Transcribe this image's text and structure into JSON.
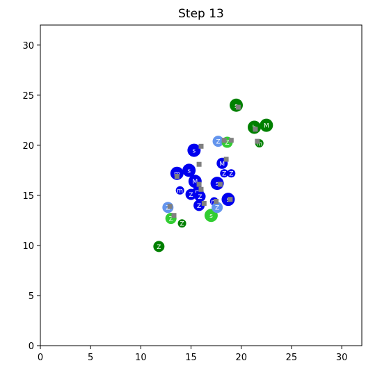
{
  "chart_data": {
    "type": "scatter",
    "title": "Step 13",
    "xlabel": "",
    "ylabel": "",
    "xlim": [
      0,
      32
    ],
    "ylim": [
      0,
      32
    ],
    "xticks": [
      0,
      5,
      10,
      15,
      20,
      25,
      30
    ],
    "yticks": [
      0,
      5,
      10,
      15,
      20,
      25,
      30
    ],
    "grid": false,
    "colors": {
      "blue": "#0000ee",
      "light_blue": "#6495ed",
      "green": "#008000",
      "light_green": "#32cd32",
      "marker_square": "#808080"
    },
    "points": [
      {
        "x": 11.8,
        "y": 9.9,
        "color": "green",
        "size": "small",
        "label": "Z"
      },
      {
        "x": 12.7,
        "y": 13.8,
        "color": "light_blue",
        "size": "small",
        "label": "Z"
      },
      {
        "x": 13.0,
        "y": 12.7,
        "color": "light_green",
        "size": "small",
        "label": "Z"
      },
      {
        "x": 14.1,
        "y": 12.2,
        "color": "green",
        "size": "tiny",
        "label": "Z"
      },
      {
        "x": 13.9,
        "y": 15.5,
        "color": "blue",
        "size": "tiny",
        "label": "m"
      },
      {
        "x": 13.6,
        "y": 17.2,
        "color": "blue",
        "size": "medium",
        "label": "m"
      },
      {
        "x": 14.8,
        "y": 17.5,
        "color": "blue",
        "size": "medium",
        "label": "s"
      },
      {
        "x": 15.3,
        "y": 19.5,
        "color": "blue",
        "size": "medium",
        "label": "s"
      },
      {
        "x": 15.4,
        "y": 16.4,
        "color": "blue",
        "size": "medium",
        "label": "M"
      },
      {
        "x": 15.0,
        "y": 15.1,
        "color": "blue",
        "size": "small",
        "label": "Z"
      },
      {
        "x": 15.8,
        "y": 14.0,
        "color": "blue",
        "size": "small",
        "label": "Z"
      },
      {
        "x": 15.7,
        "y": 15.4,
        "color": "blue",
        "size": "small",
        "label": "m"
      },
      {
        "x": 15.9,
        "y": 14.9,
        "color": "blue",
        "size": "small",
        "label": "Z"
      },
      {
        "x": 17.0,
        "y": 13.0,
        "color": "light_green",
        "size": "medium",
        "label": "s"
      },
      {
        "x": 17.3,
        "y": 14.4,
        "color": "blue",
        "size": "tiny",
        "label": "m"
      },
      {
        "x": 17.6,
        "y": 13.8,
        "color": "light_blue",
        "size": "small",
        "label": "Z"
      },
      {
        "x": 17.6,
        "y": 16.2,
        "color": "blue",
        "size": "medium",
        "label": "s"
      },
      {
        "x": 18.7,
        "y": 14.6,
        "color": "blue",
        "size": "medium",
        "label": "s"
      },
      {
        "x": 18.1,
        "y": 18.2,
        "color": "blue",
        "size": "small",
        "label": "M"
      },
      {
        "x": 18.3,
        "y": 17.2,
        "color": "blue",
        "size": "tiny",
        "label": "Z"
      },
      {
        "x": 19.0,
        "y": 17.2,
        "color": "blue",
        "size": "tiny",
        "label": "Z"
      },
      {
        "x": 17.7,
        "y": 20.4,
        "color": "light_blue",
        "size": "small",
        "label": "Z"
      },
      {
        "x": 18.6,
        "y": 20.3,
        "color": "light_green",
        "size": "small",
        "label": "Z"
      },
      {
        "x": 19.5,
        "y": 24.0,
        "color": "green",
        "size": "medium",
        "label": "s"
      },
      {
        "x": 21.3,
        "y": 21.8,
        "color": "green",
        "size": "medium",
        "label": "h"
      },
      {
        "x": 22.5,
        "y": 22.0,
        "color": "green",
        "size": "medium",
        "label": "M"
      },
      {
        "x": 21.8,
        "y": 20.2,
        "color": "green",
        "size": "tiny",
        "label": "m"
      }
    ],
    "square_markers": [
      [
        12.9,
        13.9
      ],
      [
        13.3,
        13.0
      ],
      [
        13.6,
        16.9
      ],
      [
        15.8,
        18.1
      ],
      [
        16.0,
        19.9
      ],
      [
        15.8,
        16.1
      ],
      [
        16.0,
        15.6
      ],
      [
        16.3,
        14.2
      ],
      [
        17.5,
        14.4
      ],
      [
        17.9,
        16.1
      ],
      [
        18.9,
        14.6
      ],
      [
        18.5,
        18.6
      ],
      [
        18.3,
        20.5
      ],
      [
        19.0,
        20.5
      ],
      [
        19.7,
        23.8
      ],
      [
        21.4,
        21.6
      ],
      [
        21.6,
        20.4
      ]
    ]
  }
}
